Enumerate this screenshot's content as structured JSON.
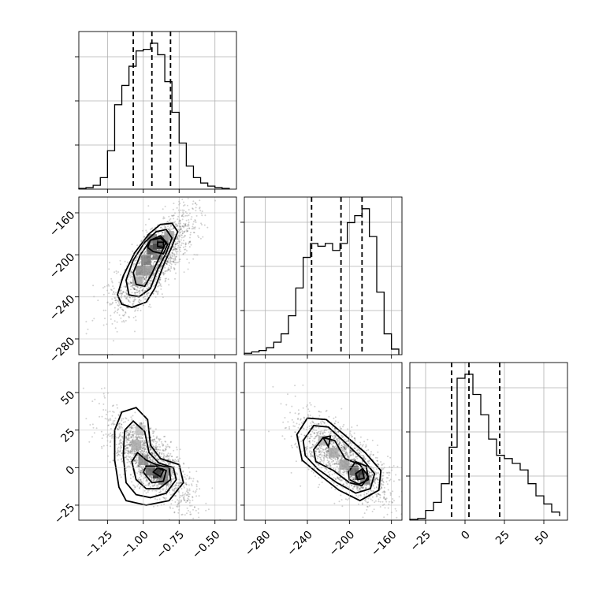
{
  "chart_data": {
    "type": "corner",
    "parameters": 3,
    "grid": true,
    "colors": {
      "line": "#000000",
      "grid": "#b0b0b0",
      "density_max": "#222222",
      "points": "#000000"
    },
    "panels": [
      {
        "id": "p0-hist",
        "kind": "hist",
        "row": 0,
        "col": 0,
        "xlim": [
          -1.45,
          -0.35
        ],
        "bins": [
          -1.45,
          -1.4,
          -1.35,
          -1.3,
          -1.25,
          -1.2,
          -1.15,
          -1.1,
          -1.05,
          -1.0,
          -0.95,
          -0.9,
          -0.85,
          -0.8,
          -0.75,
          -0.7,
          -0.65,
          -0.6,
          -0.55,
          -0.5,
          -0.45,
          -0.4
        ],
        "counts": [
          1,
          2,
          5,
          15,
          50,
          110,
          135,
          160,
          180,
          182,
          190,
          175,
          140,
          100,
          60,
          30,
          15,
          8,
          4,
          2,
          1
        ],
        "quantiles": [
          -1.07,
          -0.94,
          -0.81
        ],
        "x_grid": [
          -1.25,
          -1.0,
          -0.75,
          -0.5
        ]
      },
      {
        "id": "p1-hist",
        "kind": "hist",
        "row": 1,
        "col": 1,
        "xlim": [
          -300,
          -150
        ],
        "bins": [
          -300,
          -293,
          -286,
          -279,
          -272,
          -265,
          -258,
          -251,
          -244,
          -237,
          -230,
          -223,
          -216,
          -209,
          -202,
          -195,
          -188,
          -181,
          -174,
          -167,
          -160,
          -153
        ],
        "counts": [
          1,
          2,
          3,
          5,
          9,
          15,
          28,
          48,
          70,
          80,
          78,
          80,
          75,
          80,
          95,
          100,
          105,
          85,
          45,
          15,
          4
        ],
        "quantiles": [
          -236,
          -208,
          -188
        ],
        "x_grid": [
          -280,
          -240,
          -200,
          -160
        ]
      },
      {
        "id": "p2-hist",
        "kind": "hist",
        "row": 2,
        "col": 2,
        "xlim": [
          -35,
          65
        ],
        "bins": [
          -35,
          -30,
          -25,
          -20,
          -15,
          -10,
          -5,
          0,
          5,
          10,
          15,
          20,
          25,
          30,
          35,
          40,
          45,
          50,
          55,
          60
        ],
        "counts": [
          1,
          2,
          12,
          22,
          45,
          90,
          175,
          180,
          155,
          130,
          100,
          80,
          76,
          70,
          62,
          45,
          30,
          20,
          10,
          5
        ],
        "quantiles": [
          -8.5,
          2.5,
          22
        ],
        "x_grid": [
          -25,
          0,
          25,
          50
        ]
      },
      {
        "id": "p10-density",
        "kind": "2d",
        "row": 1,
        "col": 0,
        "xlim": [
          -1.45,
          -0.35
        ],
        "ylim": [
          -295,
          -145
        ],
        "x_grid": [
          -1.25,
          -1.0,
          -0.75,
          -0.5
        ],
        "y_grid": [
          -280,
          -240,
          -200,
          -160
        ],
        "center": [
          -0.93,
          -207
        ],
        "spread": [
          0.14,
          24
        ],
        "contours": [
          [
            [
              -1.15,
              -247
            ],
            [
              -1.08,
              -250
            ],
            [
              -0.98,
              -245
            ],
            [
              -0.92,
              -232
            ],
            [
              -0.86,
              -210
            ],
            [
              -0.8,
              -192
            ],
            [
              -0.76,
              -178
            ],
            [
              -0.8,
              -170
            ],
            [
              -0.88,
              -171
            ],
            [
              -0.96,
              -180
            ],
            [
              -1.06,
              -198
            ],
            [
              -1.14,
              -220
            ],
            [
              -1.18,
              -238
            ],
            [
              -1.15,
              -247
            ]
          ],
          [
            [
              -1.1,
              -238
            ],
            [
              -1.03,
              -240
            ],
            [
              -0.95,
              -232
            ],
            [
              -0.9,
              -214
            ],
            [
              -0.84,
              -198
            ],
            [
              -0.8,
              -184
            ],
            [
              -0.84,
              -176
            ],
            [
              -0.91,
              -178
            ],
            [
              -0.99,
              -188
            ],
            [
              -1.07,
              -205
            ],
            [
              -1.12,
              -224
            ],
            [
              -1.1,
              -238
            ]
          ],
          [
            [
              -1.05,
              -228
            ],
            [
              -0.99,
              -230
            ],
            [
              -0.94,
              -218
            ],
            [
              -0.88,
              -200
            ],
            [
              -0.84,
              -188
            ],
            [
              -0.88,
              -182
            ],
            [
              -0.95,
              -186
            ],
            [
              -1.02,
              -200
            ],
            [
              -1.07,
              -217
            ],
            [
              -1.05,
              -228
            ]
          ],
          [
            [
              -0.93,
              -197
            ],
            [
              -0.86,
              -199
            ],
            [
              -0.83,
              -190
            ],
            [
              -0.88,
              -184
            ],
            [
              -0.95,
              -186
            ],
            [
              -0.97,
              -193
            ],
            [
              -0.93,
              -197
            ]
          ],
          [
            [
              -0.9,
              -192
            ],
            [
              -0.86,
              -193
            ],
            [
              -0.86,
              -188
            ],
            [
              -0.9,
              -188
            ],
            [
              -0.9,
              -192
            ]
          ]
        ],
        "density_cells": [
          [
            -0.9,
            -190,
            1.0
          ],
          [
            -0.94,
            -195,
            0.8
          ],
          [
            -0.86,
            -186,
            0.7
          ],
          [
            -0.98,
            -205,
            0.6
          ],
          [
            -1.02,
            -215,
            0.5
          ],
          [
            -0.9,
            -200,
            0.6
          ],
          [
            -1.04,
            -225,
            0.35
          ],
          [
            -0.82,
            -182,
            0.4
          ],
          [
            -0.96,
            -215,
            0.45
          ],
          [
            -0.94,
            -185,
            0.6
          ]
        ]
      },
      {
        "id": "p20-density",
        "kind": "2d",
        "row": 2,
        "col": 0,
        "xlim": [
          -1.45,
          -0.35
        ],
        "ylim": [
          -35,
          70
        ],
        "x_grid": [
          -1.25,
          -1.0,
          -0.75,
          -0.5
        ],
        "y_grid": [
          -25,
          0,
          25,
          50
        ],
        "center": [
          -0.96,
          5
        ],
        "spread": [
          0.14,
          14
        ],
        "contours": [
          [
            [
              -1.17,
              -13
            ],
            [
              -1.12,
              -22
            ],
            [
              -0.98,
              -25
            ],
            [
              -0.82,
              -22
            ],
            [
              -0.72,
              -10
            ],
            [
              -0.75,
              2
            ],
            [
              -0.88,
              6
            ],
            [
              -0.95,
              15
            ],
            [
              -0.97,
              32
            ],
            [
              -1.05,
              40
            ],
            [
              -1.15,
              37
            ],
            [
              -1.2,
              25
            ],
            [
              -1.2,
              5
            ],
            [
              -1.17,
              -13
            ]
          ],
          [
            [
              -1.12,
              -10
            ],
            [
              -1.05,
              -18
            ],
            [
              -0.95,
              -20
            ],
            [
              -0.84,
              -17
            ],
            [
              -0.77,
              -8
            ],
            [
              -0.79,
              0
            ],
            [
              -0.89,
              3
            ],
            [
              -0.96,
              10
            ],
            [
              -0.99,
              24
            ],
            [
              -1.07,
              31
            ],
            [
              -1.13,
              25
            ],
            [
              -1.14,
              8
            ],
            [
              -1.12,
              -10
            ]
          ],
          [
            [
              -1.05,
              -8
            ],
            [
              -0.98,
              -14
            ],
            [
              -0.89,
              -14
            ],
            [
              -0.81,
              -8
            ],
            [
              -0.82,
              0
            ],
            [
              -0.91,
              2
            ],
            [
              -0.98,
              5
            ],
            [
              -1.04,
              10
            ],
            [
              -1.08,
              4
            ],
            [
              -1.05,
              -8
            ]
          ],
          [
            [
              -1.0,
              -3
            ],
            [
              -0.94,
              -10
            ],
            [
              -0.86,
              -9
            ],
            [
              -0.84,
              -2
            ],
            [
              -0.91,
              1
            ],
            [
              -0.98,
              1
            ],
            [
              -1.0,
              -3
            ]
          ],
          [
            [
              -0.93,
              -3
            ],
            [
              -0.88,
              -6
            ],
            [
              -0.86,
              -2
            ],
            [
              -0.9,
              0
            ],
            [
              -0.93,
              -3
            ]
          ]
        ],
        "density_cells": [
          [
            -0.9,
            -4,
            1.0
          ],
          [
            -0.95,
            -2,
            0.7
          ],
          [
            -0.86,
            -8,
            0.6
          ],
          [
            -1.0,
            5,
            0.5
          ],
          [
            -1.05,
            15,
            0.35
          ],
          [
            -0.84,
            -2,
            0.5
          ],
          [
            -1.02,
            25,
            0.25
          ]
        ]
      },
      {
        "id": "p21-density",
        "kind": "2d",
        "row": 2,
        "col": 1,
        "xlim": [
          -300,
          -150
        ],
        "ylim": [
          -35,
          70
        ],
        "x_grid": [
          -280,
          -240,
          -200,
          -160
        ],
        "y_grid": [
          -25,
          0,
          25,
          50
        ],
        "center": [
          -205,
          5
        ],
        "spread": [
          22,
          14
        ],
        "contours": [
          [
            [
              -250,
              22
            ],
            [
              -240,
              33
            ],
            [
              -222,
              32
            ],
            [
              -205,
              22
            ],
            [
              -185,
              10
            ],
            [
              -170,
              -2
            ],
            [
              -172,
              -15
            ],
            [
              -190,
              -22
            ],
            [
              -210,
              -15
            ],
            [
              -228,
              -5
            ],
            [
              -245,
              5
            ],
            [
              -250,
              22
            ]
          ],
          [
            [
              -244,
              18
            ],
            [
              -234,
              28
            ],
            [
              -220,
              27
            ],
            [
              -206,
              18
            ],
            [
              -188,
              6
            ],
            [
              -176,
              -4
            ],
            [
              -180,
              -14
            ],
            [
              -194,
              -17
            ],
            [
              -212,
              -10
            ],
            [
              -230,
              -1
            ],
            [
              -242,
              8
            ],
            [
              -244,
              18
            ]
          ],
          [
            [
              -234,
              12
            ],
            [
              -225,
              20
            ],
            [
              -214,
              18
            ],
            [
              -204,
              6
            ],
            [
              -190,
              2
            ],
            [
              -182,
              -6
            ],
            [
              -188,
              -12
            ],
            [
              -200,
              -10
            ],
            [
              -215,
              -2
            ],
            [
              -232,
              4
            ],
            [
              -234,
              12
            ]
          ],
          [
            [
              -201,
              -3
            ],
            [
              -194,
              4
            ],
            [
              -184,
              1
            ],
            [
              -182,
              -8
            ],
            [
              -191,
              -11
            ],
            [
              -200,
              -8
            ],
            [
              -201,
              -3
            ]
          ],
          [
            [
              -194,
              -4
            ],
            [
              -188,
              -1
            ],
            [
              -186,
              -7
            ],
            [
              -192,
              -8
            ],
            [
              -194,
              -4
            ]
          ],
          [
            [
              -225,
              20
            ],
            [
              -218,
              21
            ],
            [
              -220,
              14
            ],
            [
              -225,
              20
            ]
          ]
        ],
        "density_cells": [
          [
            -190,
            -5,
            1.0
          ],
          [
            -196,
            -2,
            0.7
          ],
          [
            -185,
            -8,
            0.6
          ],
          [
            -215,
            10,
            0.35
          ],
          [
            -225,
            18,
            0.3
          ],
          [
            -205,
            2,
            0.4
          ]
        ]
      }
    ],
    "axis_labels": {
      "x_row2": [
        [
          "-1.25",
          -1.25
        ],
        [
          "-1.00",
          -1.0
        ],
        [
          "-0.75",
          -0.75
        ],
        [
          "-0.50",
          -0.5
        ]
      ],
      "x_row2_col1": [
        [
          "-280",
          -280
        ],
        [
          "-240",
          -240
        ],
        [
          "-200",
          -200
        ],
        [
          "-160",
          -160
        ]
      ],
      "x_row2_col2": [
        [
          "-25",
          -25
        ],
        [
          "0",
          0
        ],
        [
          "25",
          25
        ],
        [
          "50",
          50
        ]
      ],
      "y_row1": [
        [
          "-160",
          -160
        ],
        [
          "-200",
          -200
        ],
        [
          "-240",
          -240
        ],
        [
          "-280",
          -280
        ]
      ],
      "y_row2": [
        [
          "50",
          50
        ],
        [
          "25",
          25
        ],
        [
          "0",
          0
        ],
        [
          "-25",
          -25
        ]
      ]
    },
    "tick_texts": {
      "xr2c0": [
        "−1.25",
        "−1.00",
        "−0.75",
        "−0.50"
      ],
      "xr2c1": [
        "−280",
        "−240",
        "−200",
        "−160"
      ],
      "xr2c2": [
        "−25",
        "0",
        "25",
        "50"
      ],
      "yr1c0": [
        "−160",
        "−200",
        "−240",
        "−280"
      ],
      "yr2c0": [
        "50",
        "25",
        "0",
        "−25"
      ]
    }
  }
}
